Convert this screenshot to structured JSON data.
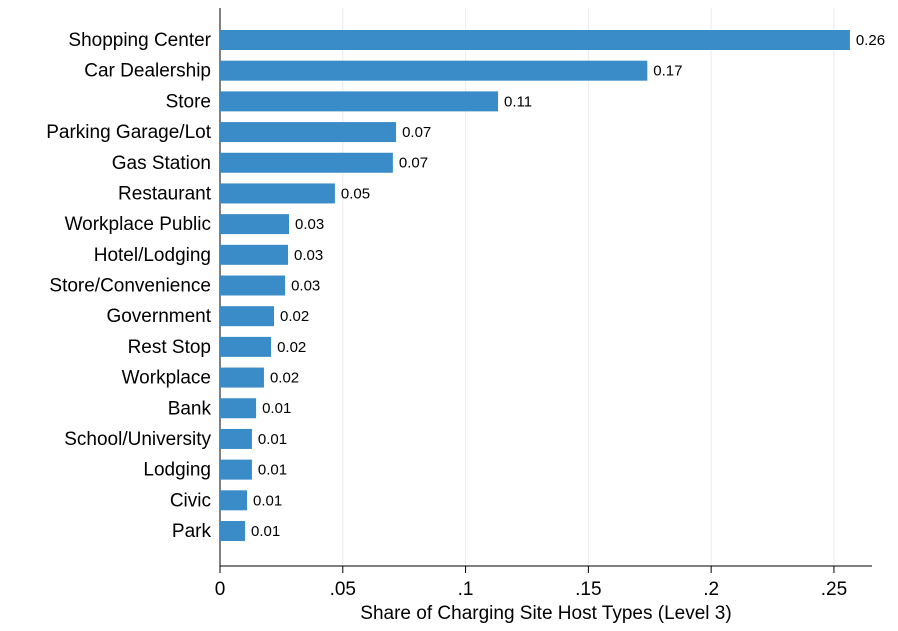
{
  "chart_data": {
    "type": "hbar",
    "x_label": "Share of Charging Site Host Types (Level 3)",
    "categories": [
      "Shopping Center",
      "Car Dealership",
      "Store",
      "Parking Garage/Lot",
      "Gas Station",
      "Restaurant",
      "Workplace Public",
      "Hotel/Lodging",
      "Store/Convenience",
      "Government",
      "Rest Stop",
      "Workplace",
      "Bank",
      "School/University",
      "Lodging",
      "Civic",
      "Park"
    ],
    "values": [
      0.2565,
      0.174,
      0.1132,
      0.0717,
      0.0704,
      0.0468,
      0.0281,
      0.0277,
      0.0265,
      0.022,
      0.0208,
      0.0179,
      0.0147,
      0.013,
      0.013,
      0.011,
      0.0102
    ],
    "value_labels": [
      "0.26",
      "0.17",
      "0.11",
      "0.07",
      "0.07",
      "0.05",
      "0.03",
      "0.03",
      "0.03",
      "0.02",
      "0.02",
      "0.02",
      "0.01",
      "0.01",
      "0.01",
      "0.01",
      "0.01"
    ],
    "color": "#3a8cc9",
    "xlim": [
      0,
      0.2655
    ],
    "xticks": [
      0,
      {
        "value": 0.05,
        "label": ".05"
      },
      {
        "value": 0.1,
        "label": ".1"
      },
      {
        "value": 0.15,
        "label": ".15"
      },
      {
        "value": 0.2,
        "label": ".2"
      },
      {
        "value": 0.25,
        "label": ".25"
      }
    ],
    "grid": true
  }
}
